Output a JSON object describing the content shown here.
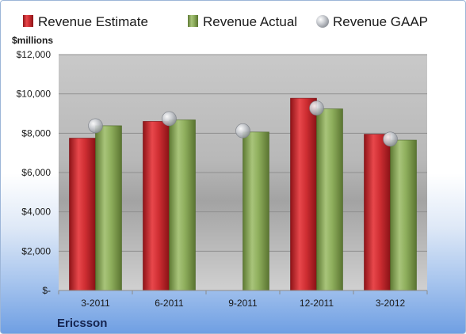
{
  "chart_data": {
    "type": "bar",
    "categories": [
      "3-2011",
      "6-2011",
      "9-2011",
      "12-2011",
      "3-2012"
    ],
    "series": [
      {
        "name": "Revenue Estimate",
        "kind": "bar",
        "color": "#c0262b",
        "values": [
          7750,
          8600,
          null,
          9780,
          7950
        ]
      },
      {
        "name": "Revenue Actual",
        "kind": "bar",
        "color": "#86a655",
        "values": [
          8380,
          8680,
          8060,
          9240,
          7650
        ]
      },
      {
        "name": "Revenue GAAP",
        "kind": "marker",
        "color": "#b8bcc2",
        "values": [
          8380,
          8740,
          8120,
          9280,
          7700
        ]
      }
    ],
    "ylabel": "$millions",
    "ylim": [
      0,
      12000
    ],
    "yticks": [
      0,
      2000,
      4000,
      6000,
      8000,
      10000,
      12000
    ],
    "ytick_labels": [
      "$-",
      "$2,000",
      "$4,000",
      "$6,000",
      "$8,000",
      "$10,000",
      "$12,000"
    ],
    "grid": true,
    "legend_position": "top"
  },
  "company": "Ericsson"
}
